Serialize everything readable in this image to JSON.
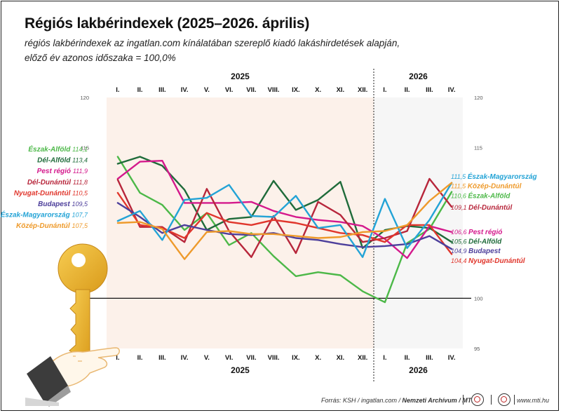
{
  "header": {
    "title": "Régiós lakbérindexek (2025–2026. április)",
    "subtitle_line1": "régiós lakbérindexek az ingatlan.com kínálatában szereplő kiadó lakáshirdetések alapján,",
    "subtitle_line2": "előző év azonos időszaka = 100,0%"
  },
  "footer": {
    "source_prefix": "Forrás: KSH / ingatlan.com / ",
    "source_bold": "Nemzeti Archívum / MTI",
    "website": "www.mti.hu",
    "logo1": "mti-logo-icon",
    "logo2": "mti-logo-icon"
  },
  "chart_data": {
    "type": "line",
    "years": [
      {
        "label": "2025",
        "months": 12
      },
      {
        "label": "2026",
        "months": 4
      }
    ],
    "x": [
      "I.",
      "II.",
      "III.",
      "IV.",
      "V.",
      "VI.",
      "VII.",
      "VIII.",
      "IX.",
      "X.",
      "XI.",
      "XII.",
      "I.",
      "II.",
      "III.",
      "IV."
    ],
    "ylim": [
      95,
      120
    ],
    "yticks": [
      "95",
      "100",
      "115",
      "120"
    ],
    "ytick_values": [
      95,
      100,
      115,
      120
    ],
    "reference_line": 100,
    "grid": false,
    "start_labels": [
      {
        "name": "Észak-Alföld",
        "value": "114,1"
      },
      {
        "name": "Dél-Alföld",
        "value": "113,4"
      },
      {
        "name": "Pest régió",
        "value": "111,9"
      },
      {
        "name": "Dél-Dunántúl",
        "value": "111,8"
      },
      {
        "name": "Nyugat-Dunántúl",
        "value": "110,5"
      },
      {
        "name": "Budapest",
        "value": "109,5"
      },
      {
        "name": "Észak-Magyarország",
        "value": "107,7"
      },
      {
        "name": "Közép-Dunántúl",
        "value": "107,5"
      }
    ],
    "end_labels": [
      {
        "name": "Észak-Magyarország",
        "value": "111,5"
      },
      {
        "name": "Közép-Dunántúl",
        "value": "111,5"
      },
      {
        "name": "Észak-Alföld",
        "value": "110,6"
      },
      {
        "name": "Dél-Dunántúl",
        "value": "109,1"
      },
      {
        "name": "Pest régió",
        "value": "106,6"
      },
      {
        "name": "Dél-Alföld",
        "value": "105,6"
      },
      {
        "name": "Budapest",
        "value": "104,9"
      },
      {
        "name": "Nyugat-Dunántúl",
        "value": "104,4"
      }
    ],
    "series": [
      {
        "name": "Észak-Alföld",
        "color": "#4cb848",
        "values": [
          114.1,
          110.5,
          109.3,
          106.8,
          108.5,
          105.3,
          106.5,
          104.2,
          102.2,
          102.6,
          102.3,
          100.7,
          99.6,
          105.5,
          106.9,
          110.6
        ]
      },
      {
        "name": "Dél-Alföld",
        "color": "#1f6b3a",
        "values": [
          113.4,
          114.1,
          113.2,
          110.8,
          106.8,
          107.9,
          108.1,
          111.7,
          108.8,
          109.8,
          111.6,
          105.0,
          106.8,
          107.2,
          107.0,
          105.6
        ]
      },
      {
        "name": "Pest régió",
        "color": "#d4198c",
        "values": [
          111.9,
          113.6,
          113.7,
          109.5,
          109.5,
          109.5,
          109.6,
          108.7,
          108.1,
          107.8,
          107.6,
          107.2,
          105.9,
          104.0,
          107.2,
          106.6
        ]
      },
      {
        "name": "Dél-Dunántúl",
        "color": "#b7263b",
        "values": [
          111.8,
          107.1,
          107.1,
          105.6,
          110.9,
          106.7,
          104.1,
          108.2,
          104.5,
          109.6,
          108.3,
          105.6,
          106.0,
          106.7,
          111.9,
          109.1
        ]
      },
      {
        "name": "Nyugat-Dunántúl",
        "color": "#e0362c",
        "values": [
          110.5,
          107.3,
          107.0,
          106.0,
          108.5,
          107.6,
          107.3,
          107.8,
          107.5,
          107.0,
          106.5,
          106.3,
          105.6,
          107.3,
          107.3,
          104.4
        ]
      },
      {
        "name": "Budapest",
        "color": "#4d3f9b",
        "values": [
          109.5,
          108.1,
          106.5,
          107.3,
          106.8,
          106.4,
          106.3,
          106.5,
          106.0,
          105.8,
          105.4,
          105.1,
          105.2,
          105.4,
          106.2,
          104.9
        ]
      },
      {
        "name": "Észak-Magyarország",
        "color": "#23a3d6",
        "values": [
          107.7,
          108.7,
          105.8,
          109.8,
          110.0,
          111.3,
          108.2,
          108.1,
          110.2,
          107.0,
          107.3,
          104.1,
          109.9,
          105.0,
          107.8,
          111.5
        ]
      },
      {
        "name": "Közép-Dunántúl",
        "color": "#ee9a2b",
        "values": [
          107.5,
          107.6,
          106.9,
          103.9,
          106.6,
          106.7,
          106.4,
          106.4,
          106.2,
          106.0,
          106.1,
          106.6,
          106.7,
          107.3,
          109.7,
          111.5
        ]
      }
    ]
  }
}
